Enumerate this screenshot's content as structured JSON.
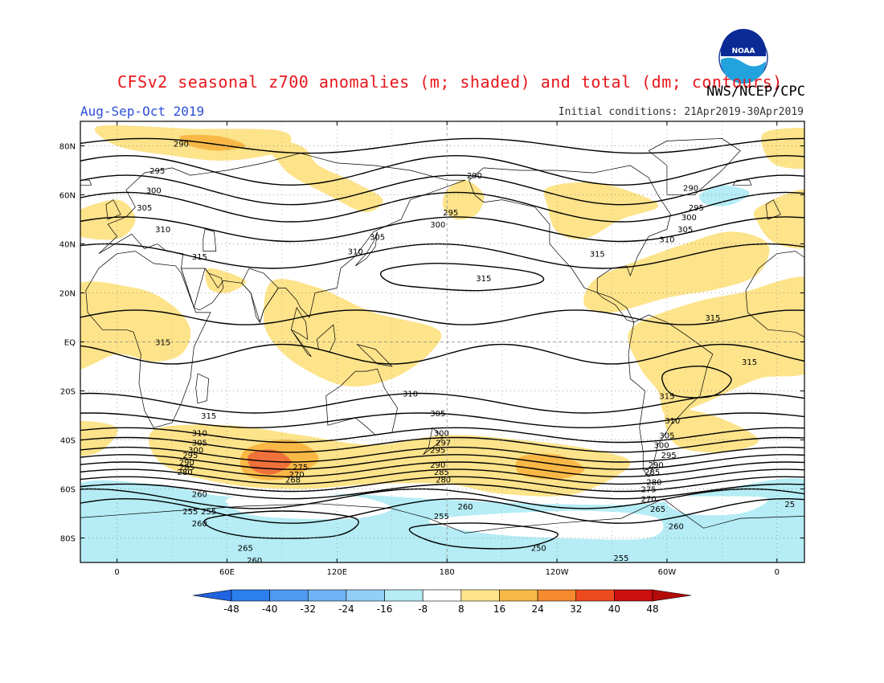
{
  "header": {
    "title": "CFSv2 seasonal z700 anomalies (m; shaded) and total (dm; contours)",
    "season": "Aug-Sep-Oct 2019",
    "initial_conditions": "Initial conditions: 21Apr2019-30Apr2019",
    "agency": "NWS/NCEP/CPC",
    "logo_text": "NOAA"
  },
  "map": {
    "lat_labels": [
      "80N",
      "60N",
      "40N",
      "20N",
      "EQ",
      "20S",
      "40S",
      "60S",
      "80S"
    ],
    "lat_values": [
      80,
      60,
      40,
      20,
      0,
      -20,
      -40,
      -60,
      -80
    ],
    "lon_labels": [
      "0",
      "60E",
      "120E",
      "180",
      "120W",
      "60W",
      "0"
    ],
    "lon_values": [
      0,
      60,
      120,
      180,
      240,
      300,
      360
    ],
    "lon_range": [
      -20,
      375
    ],
    "lat_range": [
      -90,
      90
    ],
    "colors": {
      "pos_light": "#fde38a",
      "pos_mid": "#f9b846",
      "pos_strong": "#f0703a",
      "neg_light": "#b5ecf5",
      "contour": "#000000",
      "coast": "#000000"
    },
    "contour_labels": [
      {
        "text": "290",
        "lon": 35,
        "lat": 81
      },
      {
        "text": "295",
        "lon": 22,
        "lat": 70
      },
      {
        "text": "300",
        "lon": 20,
        "lat": 62
      },
      {
        "text": "305",
        "lon": 15,
        "lat": 55
      },
      {
        "text": "310",
        "lon": 25,
        "lat": 46
      },
      {
        "text": "315",
        "lon": 45,
        "lat": 35
      },
      {
        "text": "310",
        "lon": 130,
        "lat": 37
      },
      {
        "text": "305",
        "lon": 142,
        "lat": 43
      },
      {
        "text": "300",
        "lon": 175,
        "lat": 48
      },
      {
        "text": "295",
        "lon": 182,
        "lat": 53
      },
      {
        "text": "290",
        "lon": 195,
        "lat": 68
      },
      {
        "text": "315",
        "lon": 200,
        "lat": 26
      },
      {
        "text": "315",
        "lon": 262,
        "lat": 36
      },
      {
        "text": "290",
        "lon": 313,
        "lat": 63
      },
      {
        "text": "295",
        "lon": 316,
        "lat": 55
      },
      {
        "text": "300",
        "lon": 312,
        "lat": 51
      },
      {
        "text": "305",
        "lon": 310,
        "lat": 46
      },
      {
        "text": "310",
        "lon": 300,
        "lat": 42
      },
      {
        "text": "315",
        "lon": 325,
        "lat": 10
      },
      {
        "text": "315",
        "lon": 25,
        "lat": 0
      },
      {
        "text": "315",
        "lon": 345,
        "lat": -8
      },
      {
        "text": "315",
        "lon": 300,
        "lat": -22
      },
      {
        "text": "310",
        "lon": 303,
        "lat": -32
      },
      {
        "text": "305",
        "lon": 300,
        "lat": -38
      },
      {
        "text": "310",
        "lon": 160,
        "lat": -21
      },
      {
        "text": "305",
        "lon": 175,
        "lat": -29
      },
      {
        "text": "315",
        "lon": 50,
        "lat": -30
      },
      {
        "text": "310",
        "lon": 45,
        "lat": -37
      },
      {
        "text": "305",
        "lon": 45,
        "lat": -41
      },
      {
        "text": "300",
        "lon": 43,
        "lat": -44
      },
      {
        "text": "295",
        "lon": 40,
        "lat": -46
      },
      {
        "text": "290",
        "lon": 38,
        "lat": -49
      },
      {
        "text": "285",
        "lon": 38,
        "lat": -51
      },
      {
        "text": "280",
        "lon": 37,
        "lat": -53
      },
      {
        "text": "275",
        "lon": 100,
        "lat": -51
      },
      {
        "text": "270",
        "lon": 98,
        "lat": -54
      },
      {
        "text": "268",
        "lon": 96,
        "lat": -56
      },
      {
        "text": "300",
        "lon": 177,
        "lat": -37
      },
      {
        "text": "297",
        "lon": 178,
        "lat": -41
      },
      {
        "text": "295",
        "lon": 175,
        "lat": -44
      },
      {
        "text": "290",
        "lon": 175,
        "lat": -50
      },
      {
        "text": "285",
        "lon": 177,
        "lat": -53
      },
      {
        "text": "280",
        "lon": 178,
        "lat": -56
      },
      {
        "text": "300",
        "lon": 297,
        "lat": -42
      },
      {
        "text": "295",
        "lon": 301,
        "lat": -46
      },
      {
        "text": "290",
        "lon": 294,
        "lat": -50
      },
      {
        "text": "285",
        "lon": 292,
        "lat": -53
      },
      {
        "text": "280",
        "lon": 293,
        "lat": -57
      },
      {
        "text": "275",
        "lon": 290,
        "lat": -60
      },
      {
        "text": "270",
        "lon": 290,
        "lat": -64
      },
      {
        "text": "265",
        "lon": 295,
        "lat": -68
      },
      {
        "text": "260",
        "lon": 305,
        "lat": -75
      },
      {
        "text": "260",
        "lon": 45,
        "lat": -62
      },
      {
        "text": "255",
        "lon": 40,
        "lat": -69
      },
      {
        "text": "255",
        "lon": 50,
        "lat": -69
      },
      {
        "text": "260",
        "lon": 45,
        "lat": -74
      },
      {
        "text": "265",
        "lon": 70,
        "lat": -84
      },
      {
        "text": "260",
        "lon": 75,
        "lat": -89
      },
      {
        "text": "255",
        "lon": 177,
        "lat": -71
      },
      {
        "text": "260",
        "lon": 190,
        "lat": -67
      },
      {
        "text": "250",
        "lon": 230,
        "lat": -84
      },
      {
        "text": "255",
        "lon": 275,
        "lat": -88
      },
      {
        "text": "25",
        "lon": 367,
        "lat": -66
      }
    ]
  },
  "colorbar": {
    "levels": [
      "-48",
      "-40",
      "-32",
      "-24",
      "-16",
      "-8",
      "8",
      "16",
      "24",
      "32",
      "40",
      "48"
    ],
    "colors": [
      "#1f63e0",
      "#2d7ff0",
      "#4e99f2",
      "#6fb3f4",
      "#93cef7",
      "#b5ecf5",
      "#ffffff",
      "#fde38a",
      "#f9b846",
      "#f58a2e",
      "#ee4a1f",
      "#cc0f0f",
      "#b30a0a"
    ]
  }
}
